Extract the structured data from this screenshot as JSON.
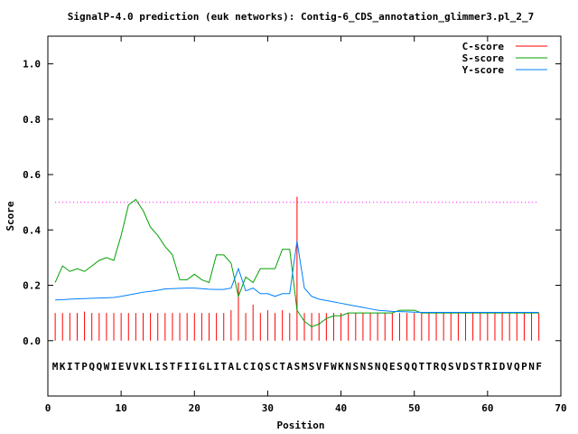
{
  "chart_data": {
    "type": "line",
    "title": "SignalP-4.0 prediction (euk networks): Contig-6_CDS_annotation_glimmer3.pl_2_7",
    "xlabel": "Position",
    "ylabel": "Score",
    "xlim": [
      0,
      70
    ],
    "ylim": [
      -0.2,
      1.1
    ],
    "x_ticks": [
      0,
      10,
      20,
      30,
      40,
      50,
      60,
      70
    ],
    "y_ticks": [
      0.0,
      0.2,
      0.4,
      0.6,
      0.8,
      1.0
    ],
    "x_tick_labels": [
      "0",
      "10",
      "20",
      "30",
      "40",
      "50",
      "60",
      "70"
    ],
    "y_tick_labels": [
      "0.0",
      "0.2",
      "0.4",
      "0.6",
      "0.8",
      "1.0"
    ],
    "grid": false,
    "legend_position": "top-right",
    "threshold": 0.5,
    "sequence": "MKITPQQWIEVVKLISTFIIGLITALCIQSCTASMSVFWKNSNSNQESQQTTRQSVDSTRIDVQPNF",
    "series": [
      {
        "name": "C-score",
        "color": "#ff0000",
        "style": "impulses",
        "values": [
          0.1,
          0.1,
          0.1,
          0.1,
          0.105,
          0.1,
          0.1,
          0.1,
          0.1,
          0.1,
          0.1,
          0.1,
          0.1,
          0.1,
          0.1,
          0.1,
          0.1,
          0.1,
          0.1,
          0.1,
          0.1,
          0.1,
          0.1,
          0.1,
          0.11,
          0.21,
          0.1,
          0.13,
          0.1,
          0.11,
          0.1,
          0.11,
          0.1,
          0.52,
          0.1,
          0.1,
          0.1,
          0.1,
          0.1,
          0.1,
          0.1,
          0.1,
          0.1,
          0.1,
          0.1,
          0.1,
          0.1,
          0.1,
          0.1,
          0.1,
          0.1,
          0.1,
          0.1,
          0.1,
          0.1,
          0.1,
          0.1,
          0.1,
          0.1,
          0.1,
          0.1,
          0.1,
          0.1,
          0.1,
          0.1,
          0.1,
          0.1
        ]
      },
      {
        "name": "S-score",
        "color": "#00a000",
        "style": "line",
        "values": [
          0.21,
          0.27,
          0.25,
          0.26,
          0.25,
          0.27,
          0.29,
          0.3,
          0.29,
          0.38,
          0.49,
          0.51,
          0.47,
          0.41,
          0.38,
          0.34,
          0.31,
          0.22,
          0.22,
          0.24,
          0.22,
          0.21,
          0.31,
          0.31,
          0.28,
          0.16,
          0.23,
          0.21,
          0.26,
          0.26,
          0.26,
          0.33,
          0.33,
          0.11,
          0.07,
          0.05,
          0.06,
          0.08,
          0.09,
          0.09,
          0.1,
          0.1,
          0.1,
          0.1,
          0.1,
          0.1,
          0.1,
          0.11,
          0.11,
          0.11,
          0.1,
          0.1,
          0.1,
          0.1,
          0.1,
          0.1,
          0.1,
          0.1,
          0.1,
          0.1,
          0.1,
          0.1,
          0.1,
          0.1,
          0.1,
          0.1,
          0.1
        ]
      },
      {
        "name": "Y-score",
        "color": "#0080ff",
        "style": "line",
        "values": [
          0.147,
          0.148,
          0.15,
          0.151,
          0.152,
          0.153,
          0.154,
          0.155,
          0.156,
          0.16,
          0.165,
          0.17,
          0.175,
          0.178,
          0.182,
          0.187,
          0.188,
          0.189,
          0.19,
          0.19,
          0.188,
          0.186,
          0.185,
          0.185,
          0.19,
          0.26,
          0.18,
          0.19,
          0.17,
          0.17,
          0.16,
          0.17,
          0.17,
          0.36,
          0.19,
          0.16,
          0.15,
          0.145,
          0.14,
          0.135,
          0.13,
          0.125,
          0.12,
          0.115,
          0.11,
          0.108,
          0.106,
          0.105,
          0.104,
          0.103,
          0.102,
          0.102,
          0.102,
          0.102,
          0.102,
          0.102,
          0.102,
          0.102,
          0.102,
          0.102,
          0.102,
          0.102,
          0.102,
          0.102,
          0.102,
          0.102,
          0.102
        ]
      }
    ],
    "threshold_color": "#ff00ff"
  }
}
